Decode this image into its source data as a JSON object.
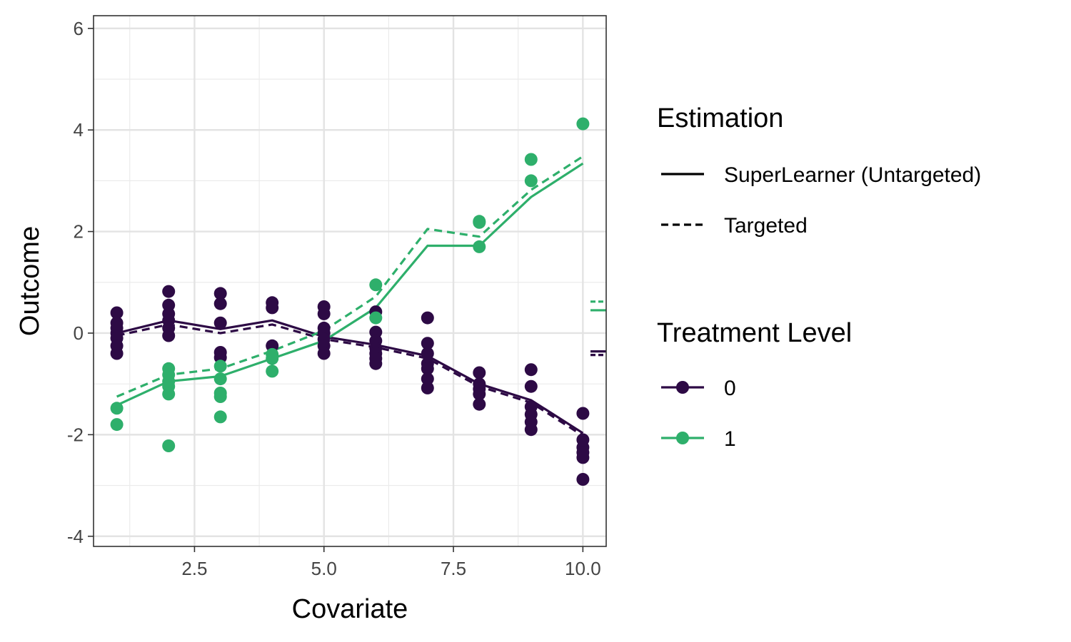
{
  "chart_data": {
    "type": "line",
    "xlabel": "Covariate",
    "ylabel": "Outcome",
    "xlim": [
      0.55,
      10.45
    ],
    "ylim": [
      -4.2,
      6.25
    ],
    "x_ticks": [
      2.5,
      5.0,
      7.5,
      10.0
    ],
    "x_tick_labels": [
      "2.5",
      "5.0",
      "7.5",
      "10.0"
    ],
    "y_ticks": [
      -4,
      -2,
      0,
      2,
      4,
      6
    ],
    "y_tick_labels": [
      "-4",
      "-2",
      "0",
      "2",
      "4",
      "6"
    ],
    "grid": true,
    "legend_position": "right",
    "legends": {
      "estimation": {
        "title": "Estimation",
        "entries": [
          {
            "label": "SuperLearner (Untargeted)",
            "linestyle": "solid"
          },
          {
            "label": "Targeted",
            "linestyle": "dashed"
          }
        ]
      },
      "treatment": {
        "title": "Treatment Level",
        "entries": [
          {
            "label": "0",
            "color": "#2d0a45"
          },
          {
            "label": "1",
            "color": "#2eaf6b"
          }
        ]
      }
    },
    "series": [
      {
        "name": "0",
        "color": "#2d0a45",
        "points": [
          [
            1,
            0.4
          ],
          [
            1,
            0.2
          ],
          [
            1,
            0.1
          ],
          [
            1,
            0.0
          ],
          [
            1,
            -0.1
          ],
          [
            1,
            -0.25
          ],
          [
            1,
            -0.4
          ],
          [
            2,
            0.82
          ],
          [
            2,
            0.55
          ],
          [
            2,
            0.38
          ],
          [
            2,
            0.25
          ],
          [
            2,
            0.1
          ],
          [
            2,
            -0.05
          ],
          [
            3,
            0.78
          ],
          [
            3,
            0.58
          ],
          [
            3,
            0.2
          ],
          [
            3,
            -0.38
          ],
          [
            3,
            -0.48
          ],
          [
            4,
            0.6
          ],
          [
            4,
            0.5
          ],
          [
            4,
            -0.25
          ],
          [
            5,
            0.52
          ],
          [
            5,
            0.38
          ],
          [
            5,
            0.1
          ],
          [
            5,
            0.0
          ],
          [
            5,
            -0.12
          ],
          [
            5,
            -0.25
          ],
          [
            5,
            -0.4
          ],
          [
            6,
            0.42
          ],
          [
            6,
            0.02
          ],
          [
            6,
            -0.15
          ],
          [
            6,
            -0.3
          ],
          [
            6,
            -0.4
          ],
          [
            6,
            -0.5
          ],
          [
            6,
            -0.6
          ],
          [
            7,
            0.3
          ],
          [
            7,
            -0.2
          ],
          [
            7,
            -0.4
          ],
          [
            7,
            -0.6
          ],
          [
            7,
            -0.7
          ],
          [
            7,
            -0.9
          ],
          [
            7,
            -1.08
          ],
          [
            8,
            -0.78
          ],
          [
            8,
            -1.0
          ],
          [
            8,
            -1.1
          ],
          [
            8,
            -1.2
          ],
          [
            8,
            -1.4
          ],
          [
            9,
            -0.72
          ],
          [
            9,
            -1.05
          ],
          [
            9,
            -1.45
          ],
          [
            9,
            -1.6
          ],
          [
            9,
            -1.75
          ],
          [
            9,
            -1.9
          ],
          [
            10,
            -1.58
          ],
          [
            10,
            -2.1
          ],
          [
            10,
            -2.25
          ],
          [
            10,
            -2.35
          ],
          [
            10,
            -2.45
          ],
          [
            10,
            -2.88
          ]
        ],
        "superlearner": [
          [
            1,
            0.0
          ],
          [
            2,
            0.25
          ],
          [
            3,
            0.08
          ],
          [
            4,
            0.25
          ],
          [
            5,
            -0.07
          ],
          [
            6,
            -0.23
          ],
          [
            7,
            -0.45
          ],
          [
            8,
            -1.0
          ],
          [
            9,
            -1.32
          ],
          [
            10,
            -1.97
          ]
        ],
        "targeted": [
          [
            1,
            -0.05
          ],
          [
            2,
            0.17
          ],
          [
            3,
            0.0
          ],
          [
            4,
            0.17
          ],
          [
            5,
            -0.12
          ],
          [
            6,
            -0.28
          ],
          [
            7,
            -0.5
          ],
          [
            8,
            -1.05
          ],
          [
            9,
            -1.37
          ],
          [
            10,
            -2.02
          ]
        ]
      },
      {
        "name": "1",
        "color": "#2eaf6b",
        "points": [
          [
            1,
            -1.48
          ],
          [
            1,
            -1.8
          ],
          [
            2,
            -0.7
          ],
          [
            2,
            -0.82
          ],
          [
            2,
            -0.95
          ],
          [
            2,
            -1.05
          ],
          [
            2,
            -1.2
          ],
          [
            2,
            -2.22
          ],
          [
            3,
            -0.65
          ],
          [
            3,
            -0.9
          ],
          [
            3,
            -1.18
          ],
          [
            3,
            -1.25
          ],
          [
            3,
            -1.65
          ],
          [
            4,
            -0.42
          ],
          [
            4,
            -0.5
          ],
          [
            4,
            -0.75
          ],
          [
            6,
            0.95
          ],
          [
            6,
            0.3
          ],
          [
            8,
            2.2
          ],
          [
            8,
            2.18
          ],
          [
            8,
            1.7
          ],
          [
            9,
            3.42
          ],
          [
            9,
            3.0
          ],
          [
            10,
            4.12
          ]
        ],
        "superlearner": [
          [
            1,
            -1.42
          ],
          [
            2,
            -0.95
          ],
          [
            3,
            -0.85
          ],
          [
            4,
            -0.5
          ],
          [
            5,
            -0.15
          ],
          [
            6,
            0.5
          ],
          [
            7,
            1.72
          ],
          [
            8,
            1.72
          ],
          [
            9,
            2.68
          ],
          [
            10,
            3.34
          ]
        ],
        "targeted": [
          [
            1,
            -1.25
          ],
          [
            2,
            -0.82
          ],
          [
            3,
            -0.7
          ],
          [
            4,
            -0.35
          ],
          [
            5,
            0.05
          ],
          [
            6,
            0.72
          ],
          [
            7,
            2.05
          ],
          [
            8,
            1.9
          ],
          [
            9,
            2.82
          ],
          [
            10,
            3.48
          ]
        ]
      }
    ],
    "side_marks": [
      {
        "series": "1",
        "style": "dashed",
        "y": 0.62
      },
      {
        "series": "1",
        "style": "solid",
        "y": 0.45
      },
      {
        "series": "0",
        "style": "solid",
        "y": -0.36
      },
      {
        "series": "0",
        "style": "dashed",
        "y": -0.43
      }
    ]
  }
}
